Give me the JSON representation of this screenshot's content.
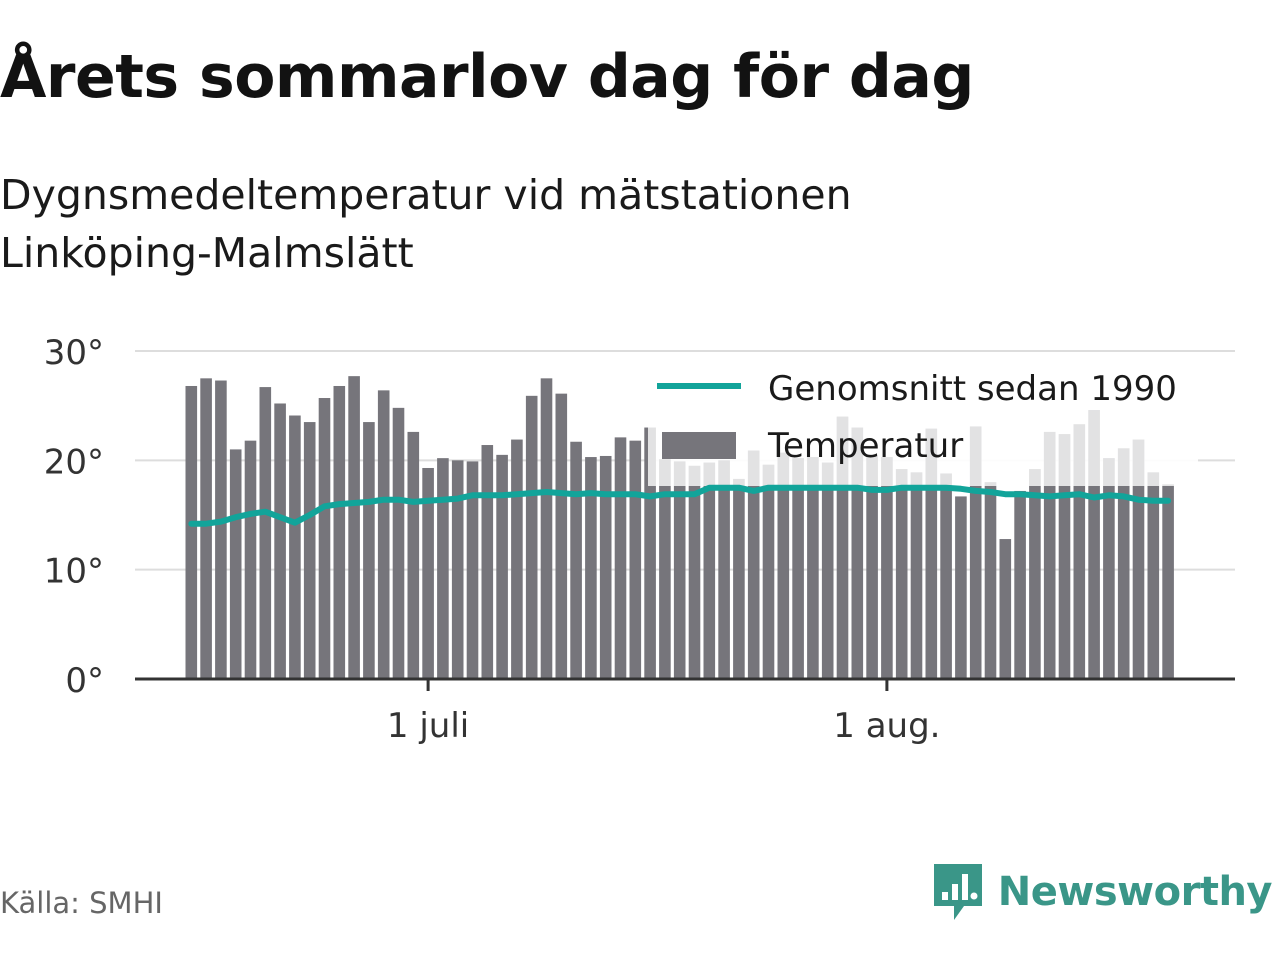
{
  "header": {
    "title": "Årets sommarlov dag för dag",
    "subtitle": "Dygnsmedeltemperatur vid mätstationen Linköping-Malmslätt"
  },
  "footer": {
    "source": "Källa: SMHI",
    "brand": "Newsworthy",
    "brand_icon": "newsworthy-logo-icon"
  },
  "colors": {
    "bar": "#76757b",
    "bar_faded": "#e2e2e3",
    "average_line": "#12a49a",
    "grid": "#dddddd",
    "axis": "#333333",
    "brand": "#3a9688"
  },
  "chart_data": {
    "type": "bar",
    "start_date": "2018-06-15",
    "end_date": "2018-08-20",
    "ylim": [
      0,
      30
    ],
    "y_ticks": [
      0,
      10,
      20,
      30
    ],
    "y_tick_labels": [
      "0°",
      "10°",
      "20°",
      "30°"
    ],
    "x_ticks": [
      {
        "date": "2018-07-01",
        "label": "1 juli"
      },
      {
        "date": "2018-08-01",
        "label": "1 aug."
      }
    ],
    "grid": true,
    "legend": {
      "position": "top-right",
      "items": [
        {
          "label": "Genomsnitt sedan 1990",
          "kind": "line"
        },
        {
          "label": "Temperatur",
          "kind": "bar"
        }
      ]
    },
    "series": [
      {
        "name": "Temperatur",
        "type": "bar",
        "values": [
          26.8,
          27.5,
          27.3,
          21.0,
          21.8,
          26.7,
          25.2,
          24.1,
          23.5,
          25.7,
          26.8,
          27.7,
          23.5,
          26.4,
          24.8,
          22.6,
          19.3,
          20.2,
          20.0,
          19.9,
          21.4,
          20.5,
          21.9,
          25.9,
          27.5,
          26.1,
          21.7,
          20.3,
          20.4,
          22.1,
          21.8,
          23.0,
          20.1,
          19.9,
          19.5,
          19.8,
          20.0,
          18.3,
          20.9,
          19.6,
          20.7,
          20.2,
          20.3,
          19.8,
          24.0,
          23.0,
          20.5,
          20.3,
          19.2,
          18.9,
          22.9,
          18.8,
          16.7,
          23.1,
          18.0,
          12.8,
          17.2,
          19.2,
          22.6,
          22.4,
          23.3,
          24.6,
          20.2,
          21.1,
          21.9,
          18.9,
          17.8
        ]
      },
      {
        "name": "Genomsnitt sedan 1990",
        "type": "line",
        "values": [
          14.2,
          14.2,
          14.4,
          14.8,
          15.1,
          15.3,
          14.8,
          14.3,
          15.0,
          15.8,
          16.0,
          16.1,
          16.2,
          16.4,
          16.4,
          16.2,
          16.3,
          16.4,
          16.5,
          16.8,
          16.8,
          16.8,
          16.9,
          17.0,
          17.1,
          17.0,
          16.9,
          17.0,
          16.9,
          16.9,
          16.9,
          16.7,
          16.9,
          16.9,
          16.9,
          17.5,
          17.5,
          17.5,
          17.2,
          17.5,
          17.5,
          17.5,
          17.5,
          17.5,
          17.5,
          17.5,
          17.3,
          17.3,
          17.5,
          17.5,
          17.5,
          17.5,
          17.4,
          17.2,
          17.1,
          16.9,
          16.9,
          16.8,
          16.7,
          16.8,
          16.9,
          16.6,
          16.8,
          16.7,
          16.4,
          16.3,
          16.3
        ]
      }
    ]
  }
}
